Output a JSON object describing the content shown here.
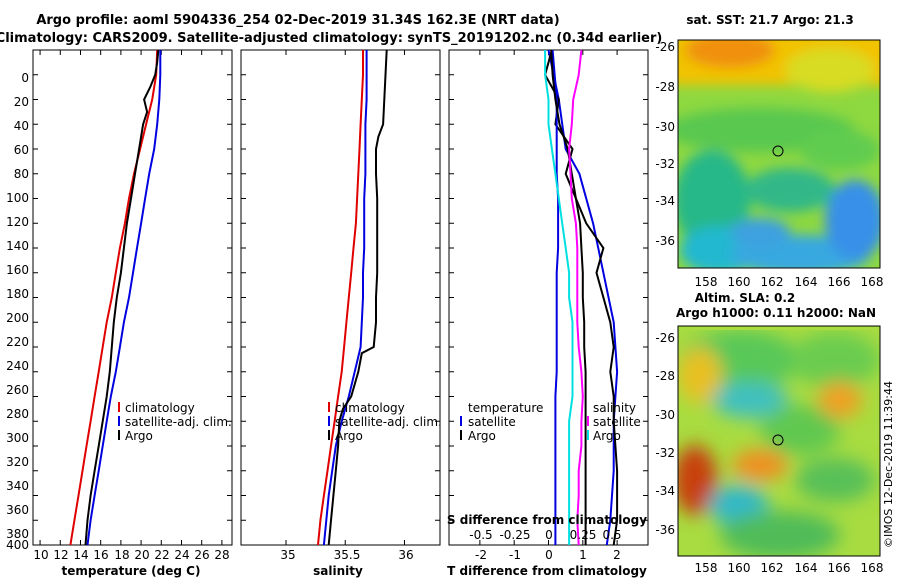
{
  "header": {
    "title_line1": "Argo profile: aoml 5904336_254 02-Dec-2019 31.34S 162.3E (NRT data)",
    "title_line2": "Climatology: CARS2009. Satellite-adjusted climatology: synTS_20191202.nc (0.34d earlier)"
  },
  "colors": {
    "climatology": "#e00000",
    "satellite": "#0000e0",
    "argo": "#000000",
    "salinity_diff": "#ff00ff",
    "temperature_diff": "#00e0e0"
  },
  "chart_data": [
    {
      "type": "line",
      "id": "temperature-profile",
      "xlabel": "temperature (deg C)",
      "ylabel": "",
      "xlim": [
        9.3,
        29
      ],
      "ylim": [
        400,
        0
      ],
      "xticks": [
        "10",
        "12",
        "14",
        "16",
        "18",
        "20",
        "22",
        "24",
        "26",
        "28"
      ],
      "yticks": [
        "0",
        "20",
        "40",
        "60",
        "80",
        "100",
        "120",
        "140",
        "160",
        "180",
        "200",
        "220",
        "240",
        "260",
        "280",
        "300",
        "320",
        "340",
        "360",
        "380",
        "400"
      ],
      "legend": [
        "climatology",
        "satellite-adj. clim.",
        "Argo"
      ],
      "legend_position": "lower-right",
      "series": [
        {
          "name": "climatology",
          "depth": [
            0,
            20,
            40,
            60,
            80,
            100,
            120,
            140,
            160,
            180,
            200,
            220,
            240,
            260,
            280,
            300,
            320,
            340,
            360,
            380,
            400
          ],
          "values": [
            21.6,
            21.5,
            21.1,
            20.5,
            19.9,
            19.3,
            18.8,
            18.4,
            17.9,
            17.5,
            17.1,
            16.6,
            16.2,
            15.8,
            15.4,
            15.0,
            14.6,
            14.2,
            13.8,
            13.4,
            13.0
          ]
        },
        {
          "name": "satellite-adj. clim.",
          "depth": [
            0,
            20,
            40,
            60,
            80,
            100,
            120,
            140,
            160,
            180,
            200,
            220,
            240,
            260,
            280,
            300,
            320,
            340,
            360,
            380,
            400
          ],
          "values": [
            21.9,
            21.9,
            21.8,
            21.6,
            21.3,
            20.8,
            20.4,
            20.0,
            19.6,
            19.2,
            18.8,
            18.3,
            17.9,
            17.5,
            17.0,
            16.6,
            16.2,
            15.8,
            15.4,
            15.0,
            14.7
          ]
        },
        {
          "name": "Argo",
          "depth": [
            0,
            10,
            20,
            30,
            40,
            50,
            60,
            80,
            100,
            120,
            140,
            160,
            180,
            200,
            220,
            240,
            260,
            280,
            300,
            320,
            340,
            360,
            380,
            400
          ],
          "values": [
            21.7,
            21.6,
            21.4,
            20.9,
            20.3,
            20.6,
            20.2,
            19.8,
            19.4,
            19.0,
            18.6,
            18.3,
            18.0,
            17.6,
            17.3,
            17.1,
            16.9,
            16.6,
            16.2,
            15.8,
            15.4,
            15.0,
            14.7,
            14.5
          ]
        }
      ]
    },
    {
      "type": "line",
      "id": "salinity-profile",
      "xlabel": "salinity",
      "ylabel": "",
      "xlim": [
        34.62,
        36.3
      ],
      "ylim": [
        400,
        0
      ],
      "xticks": [
        "35",
        "35.5",
        "36"
      ],
      "legend": [
        "climatology",
        "satellite-adj. clim.",
        "Argo"
      ],
      "legend_position": "lower-right",
      "series": [
        {
          "name": "climatology",
          "depth": [
            0,
            20,
            40,
            60,
            80,
            100,
            120,
            140,
            160,
            180,
            200,
            220,
            240,
            260,
            280,
            300,
            320,
            340,
            360,
            380,
            400
          ],
          "values": [
            35.65,
            35.65,
            35.64,
            35.63,
            35.62,
            35.61,
            35.6,
            35.59,
            35.57,
            35.55,
            35.53,
            35.51,
            35.49,
            35.47,
            35.44,
            35.41,
            35.38,
            35.35,
            35.32,
            35.29,
            35.27
          ]
        },
        {
          "name": "satellite-adj. clim.",
          "depth": [
            0,
            20,
            40,
            60,
            80,
            100,
            120,
            140,
            160,
            180,
            200,
            220,
            240,
            260,
            280,
            300,
            320,
            340,
            360,
            380,
            400
          ],
          "values": [
            35.68,
            35.68,
            35.68,
            35.67,
            35.67,
            35.67,
            35.66,
            35.66,
            35.66,
            35.65,
            35.65,
            35.64,
            35.63,
            35.58,
            35.53,
            35.47,
            35.42,
            35.39,
            35.36,
            35.34,
            35.32
          ]
        },
        {
          "name": "Argo",
          "depth": [
            0,
            20,
            40,
            60,
            70,
            80,
            100,
            120,
            140,
            160,
            180,
            200,
            220,
            240,
            245,
            260,
            280,
            290,
            300,
            320,
            340,
            360,
            380,
            400
          ],
          "values": [
            35.85,
            35.84,
            35.83,
            35.82,
            35.78,
            35.76,
            35.76,
            35.77,
            35.77,
            35.77,
            35.77,
            35.76,
            35.76,
            35.74,
            35.64,
            35.61,
            35.55,
            35.48,
            35.45,
            35.44,
            35.42,
            35.4,
            35.38,
            35.36
          ]
        }
      ]
    },
    {
      "type": "line",
      "id": "difference-from-climatology",
      "xlabel": "T difference from climatology",
      "x2label": "S difference from climatology",
      "xlim": [
        -2.9,
        2.9
      ],
      "x2lim": [
        -0.725,
        0.725
      ],
      "ylim": [
        400,
        0
      ],
      "xticks": [
        "-2",
        "-1",
        "0",
        "1",
        "2"
      ],
      "x2ticks": [
        "-0.5",
        "-0.25",
        "0",
        "0.25",
        "0.5"
      ],
      "legend_left": [
        "temperature",
        "satellite",
        "Argo"
      ],
      "legend_right": [
        "salinity",
        "satellite",
        "Argo"
      ],
      "series": [
        {
          "name": "temperature satellite",
          "axis": "T",
          "depth": [
            0,
            40,
            80,
            100,
            140,
            180,
            220,
            260,
            300,
            340,
            380,
            400
          ],
          "values": [
            0.0,
            0.3,
            0.5,
            0.9,
            1.3,
            1.6,
            1.9,
            2.0,
            1.9,
            1.9,
            1.8,
            1.7
          ]
        },
        {
          "name": "temperature Argo",
          "axis": "T",
          "depth": [
            0,
            20,
            40,
            60,
            80,
            100,
            120,
            140,
            160,
            180,
            200,
            220,
            240,
            260,
            280,
            300,
            340,
            380,
            400
          ],
          "values": [
            0.1,
            -0.1,
            0.3,
            0.2,
            0.7,
            0.5,
            0.8,
            1.1,
            1.6,
            1.4,
            1.6,
            1.8,
            1.9,
            1.8,
            1.9,
            1.9,
            2.0,
            2.0,
            1.9
          ]
        },
        {
          "name": "salinity satellite",
          "axis": "S",
          "depth": [
            0,
            40,
            80,
            100,
            120,
            140,
            160,
            180,
            200,
            220,
            240,
            260,
            280,
            300,
            320,
            340,
            360,
            380,
            400
          ],
          "values": [
            0.03,
            0.06,
            0.06,
            0.06,
            0.07,
            0.07,
            0.07,
            0.06,
            0.06,
            0.06,
            0.06,
            0.06,
            0.05,
            0.05,
            0.05,
            0.05,
            0.05,
            0.05,
            0.05
          ]
        },
        {
          "name": "salinity Argo",
          "axis": "S",
          "depth": [
            0,
            20,
            40,
            60,
            80,
            100,
            120,
            140,
            160,
            180,
            200,
            220,
            240,
            260,
            280,
            300,
            320,
            340,
            360,
            380,
            400
          ],
          "values": [
            0.02,
            0.03,
            0.05,
            0.08,
            0.14,
            0.17,
            0.2,
            0.23,
            0.24,
            0.25,
            0.25,
            0.26,
            0.26,
            0.27,
            0.27,
            0.27,
            0.27,
            0.27,
            0.27,
            0.27,
            0.27
          ]
        },
        {
          "name": "salinity difference",
          "axis": "S",
          "depth": [
            0,
            20,
            40,
            60,
            80,
            100,
            120,
            140,
            160,
            180,
            200,
            220,
            240,
            260,
            280,
            300,
            320,
            340,
            360,
            380,
            400
          ],
          "values": [
            0.24,
            0.22,
            0.18,
            0.17,
            0.15,
            0.16,
            0.17,
            0.2,
            0.21,
            0.21,
            0.21,
            0.21,
            0.22,
            0.24,
            0.25,
            0.24,
            0.24,
            0.22,
            0.22,
            0.21,
            0.22
          ]
        },
        {
          "name": "temperature difference",
          "axis": "T",
          "depth": [
            0,
            20,
            40,
            60,
            80,
            100,
            120,
            140,
            160,
            180,
            200,
            220,
            240,
            260,
            280,
            300,
            320,
            340,
            360,
            380,
            400
          ],
          "values": [
            -0.1,
            -0.1,
            0.0,
            0.0,
            0.1,
            0.2,
            0.3,
            0.4,
            0.5,
            0.6,
            0.6,
            0.7,
            0.7,
            0.7,
            0.7,
            0.6,
            0.6,
            0.6,
            0.6,
            0.6,
            0.6
          ]
        }
      ]
    },
    {
      "type": "heatmap",
      "id": "sst-map",
      "title": "sat. SST: 21.7 Argo: 21.3",
      "xlim": [
        156.2,
        168.4
      ],
      "ylim": [
        -37.2,
        -25.6
      ],
      "xticks": [
        "158",
        "160",
        "162",
        "164",
        "166",
        "168"
      ],
      "yticks": [
        "-26",
        "-28",
        "-30",
        "-32",
        "-34",
        "-36"
      ],
      "profile_marker": {
        "lon": 162.3,
        "lat": -31.34
      }
    },
    {
      "type": "heatmap",
      "id": "sla-map",
      "title": "Altim. SLA: 0.2",
      "subtitle": "Argo h1000: 0.11 h2000: NaN",
      "xlim": [
        156.2,
        168.4
      ],
      "ylim": [
        -37.2,
        -25.6
      ],
      "xticks": [
        "158",
        "160",
        "162",
        "164",
        "166",
        "168"
      ],
      "yticks": [
        "-26",
        "-28",
        "-30",
        "-32",
        "-34",
        "-36"
      ],
      "profile_marker": {
        "lon": 162.3,
        "lat": -31.34
      }
    }
  ],
  "watermark": "©IMOS 12-Dec-2019 11:39:44"
}
